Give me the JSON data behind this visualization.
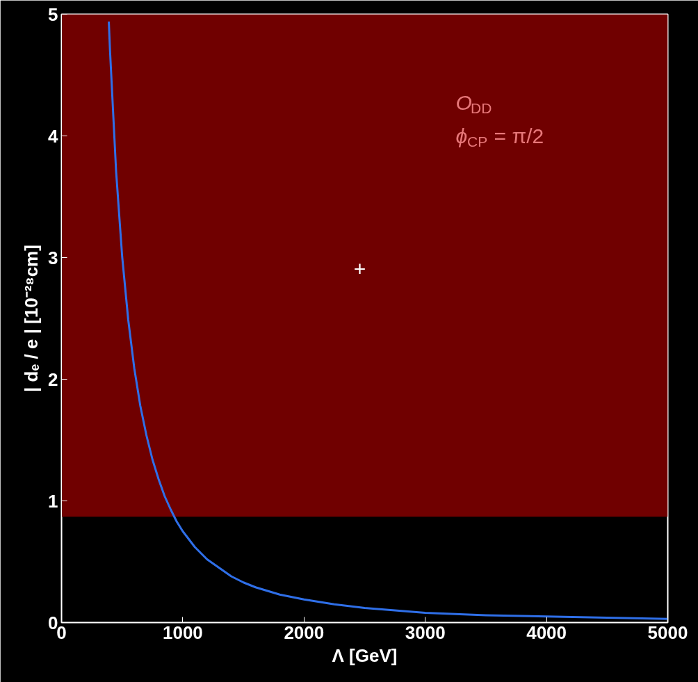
{
  "chart_data": {
    "type": "line",
    "xlabel": "Λ [GeV]",
    "ylabel": "| dₑ / e | [10⁻²⁸cm]",
    "xlim": [
      0,
      5000
    ],
    "ylim": [
      0,
      5
    ],
    "xticks": [
      0,
      1000,
      2000,
      3000,
      4000,
      5000
    ],
    "yticks": [
      0,
      1,
      2,
      3,
      4,
      5
    ],
    "grid": false,
    "x": [
      390,
      400,
      450,
      500,
      550,
      600,
      650,
      700,
      750,
      800,
      850,
      900,
      950,
      1000,
      1100,
      1200,
      1300,
      1400,
      1500,
      1600,
      1800,
      2000,
      2250,
      2500,
      2750,
      3000,
      3500,
      4000,
      4500,
      5000
    ],
    "series": [
      {
        "color": "#2f6fe8",
        "values": [
          4.94,
          4.7,
          3.71,
          3.01,
          2.49,
          2.09,
          1.78,
          1.54,
          1.34,
          1.18,
          1.04,
          0.93,
          0.83,
          0.75,
          0.62,
          0.52,
          0.45,
          0.38,
          0.33,
          0.29,
          0.23,
          0.19,
          0.15,
          0.12,
          0.1,
          0.08,
          0.06,
          0.05,
          0.04,
          0.03
        ]
      }
    ],
    "bands": [
      {
        "axis": "y",
        "from": 0.87,
        "to": 5,
        "color": "#700000"
      }
    ],
    "annotations": [
      "O$_{DD}$",
      "ϕ$_{CP}$ = π/2",
      "+"
    ]
  }
}
